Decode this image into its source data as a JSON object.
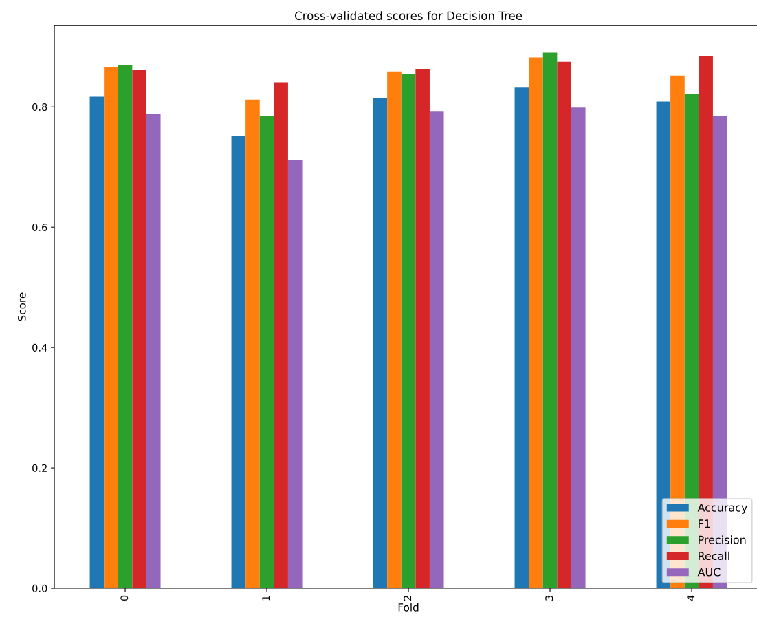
{
  "chart_data": {
    "type": "bar",
    "title": "Cross-validated scores for Decision Tree",
    "xlabel": "Fold",
    "ylabel": "Score",
    "categories": [
      "0",
      "1",
      "2",
      "3",
      "4"
    ],
    "series": [
      {
        "name": "Accuracy",
        "color": "#1f77b4",
        "values": [
          0.817,
          0.752,
          0.814,
          0.832,
          0.809
        ]
      },
      {
        "name": "F1",
        "color": "#ff7f0e",
        "values": [
          0.866,
          0.812,
          0.859,
          0.882,
          0.852
        ]
      },
      {
        "name": "Precision",
        "color": "#2ca02c",
        "values": [
          0.869,
          0.785,
          0.855,
          0.89,
          0.821
        ]
      },
      {
        "name": "Recall",
        "color": "#d62728",
        "values": [
          0.861,
          0.841,
          0.862,
          0.875,
          0.884
        ]
      },
      {
        "name": "AUC",
        "color": "#9467bd",
        "values": [
          0.788,
          0.712,
          0.792,
          0.799,
          0.785
        ]
      }
    ],
    "ylim": [
      0,
      0.935
    ],
    "yticks": [
      {
        "value": 0,
        "label": "0.0"
      },
      0.2,
      0.4,
      0.6,
      0.8
    ],
    "grid": false,
    "legend": "bottom right"
  }
}
